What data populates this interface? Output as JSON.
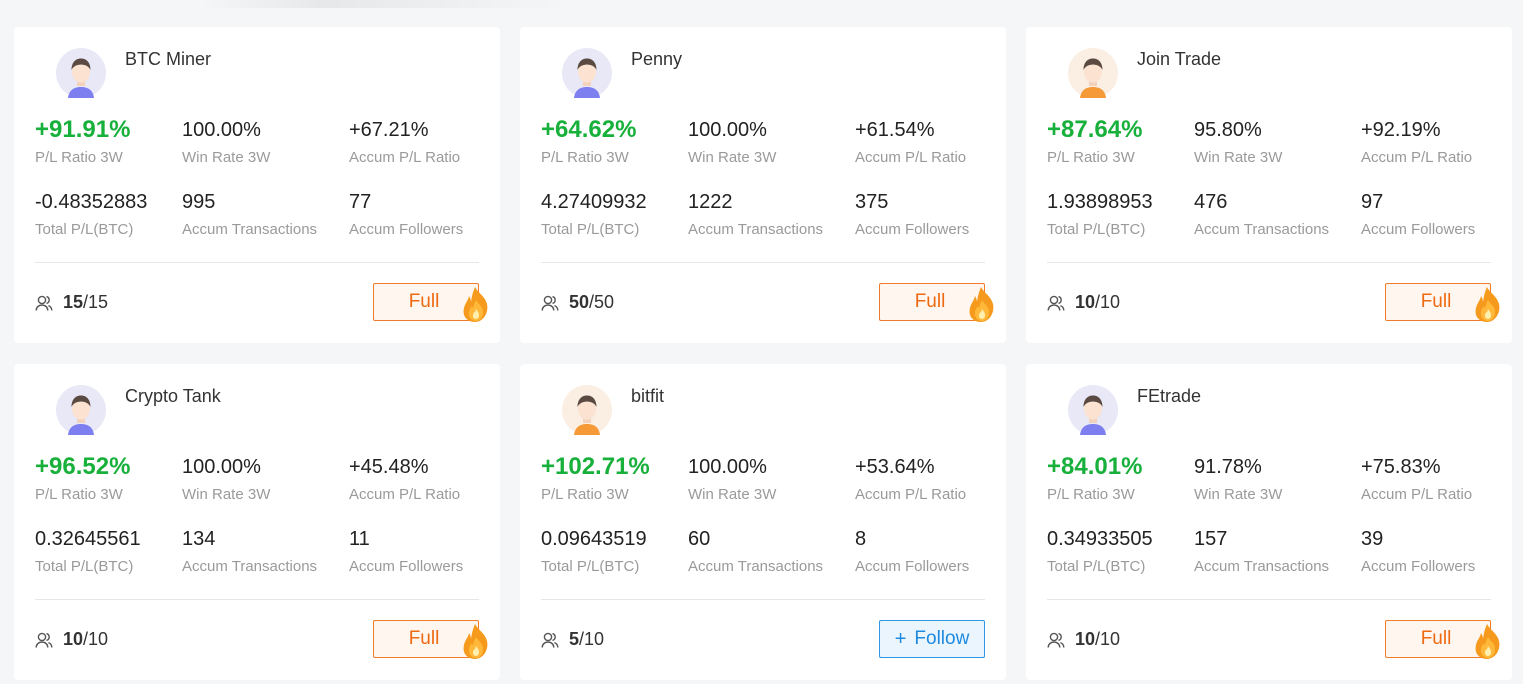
{
  "colors": {
    "positive": "#17b03a",
    "full_accent": "#ee6a12",
    "follow_accent": "#1d8ae0"
  },
  "labels": {
    "pl_ratio": "P/L Ratio 3W",
    "win_rate": "Win Rate 3W",
    "accum_pl": "Accum P/L Ratio",
    "total_pl": "Total P/L(BTC)",
    "accum_tx": "Accum Transactions",
    "accum_followers": "Accum Followers"
  },
  "traders": [
    {
      "name": "BTC Miner",
      "avatar": "avatar-blue-icon",
      "pl_ratio": "+91.91%",
      "win_rate": "100.00%",
      "accum_pl": "+67.21%",
      "total_pl": "-0.48352883",
      "accum_tx": "995",
      "accum_followers": "77",
      "slots_used": "15",
      "slots_total": "/15",
      "button": {
        "type": "full",
        "label": "Full",
        "icon": "flame-icon"
      }
    },
    {
      "name": "Penny",
      "avatar": "avatar-blue-icon",
      "pl_ratio": "+64.62%",
      "win_rate": "100.00%",
      "accum_pl": "+61.54%",
      "total_pl": "4.27409932",
      "accum_tx": "1222",
      "accum_followers": "375",
      "slots_used": "50",
      "slots_total": "/50",
      "button": {
        "type": "full",
        "label": "Full",
        "icon": "flame-icon"
      }
    },
    {
      "name": "Join Trade",
      "avatar": "avatar-orange-icon",
      "pl_ratio": "+87.64%",
      "win_rate": "95.80%",
      "accum_pl": "+92.19%",
      "total_pl": "1.93898953",
      "accum_tx": "476",
      "accum_followers": "97",
      "slots_used": "10",
      "slots_total": "/10",
      "button": {
        "type": "full",
        "label": "Full",
        "icon": "flame-icon"
      }
    },
    {
      "name": "Crypto Tank",
      "avatar": "avatar-blue-icon",
      "pl_ratio": "+96.52%",
      "win_rate": "100.00%",
      "accum_pl": "+45.48%",
      "total_pl": "0.32645561",
      "accum_tx": "134",
      "accum_followers": "11",
      "slots_used": "10",
      "slots_total": "/10",
      "button": {
        "type": "full",
        "label": "Full",
        "icon": "flame-icon"
      }
    },
    {
      "name": "bitfit",
      "avatar": "avatar-orange-icon",
      "pl_ratio": "+102.71%",
      "win_rate": "100.00%",
      "accum_pl": "+53.64%",
      "total_pl": "0.09643519",
      "accum_tx": "60",
      "accum_followers": "8",
      "slots_used": "5",
      "slots_total": "/10",
      "button": {
        "type": "follow",
        "label": "Follow",
        "icon": "plus-icon",
        "icon_glyph": "+"
      }
    },
    {
      "name": "FEtrade",
      "avatar": "avatar-blue-icon",
      "pl_ratio": "+84.01%",
      "win_rate": "91.78%",
      "accum_pl": "+75.83%",
      "total_pl": "0.34933505",
      "accum_tx": "157",
      "accum_followers": "39",
      "slots_used": "10",
      "slots_total": "/10",
      "button": {
        "type": "full",
        "label": "Full",
        "icon": "flame-icon"
      }
    }
  ]
}
